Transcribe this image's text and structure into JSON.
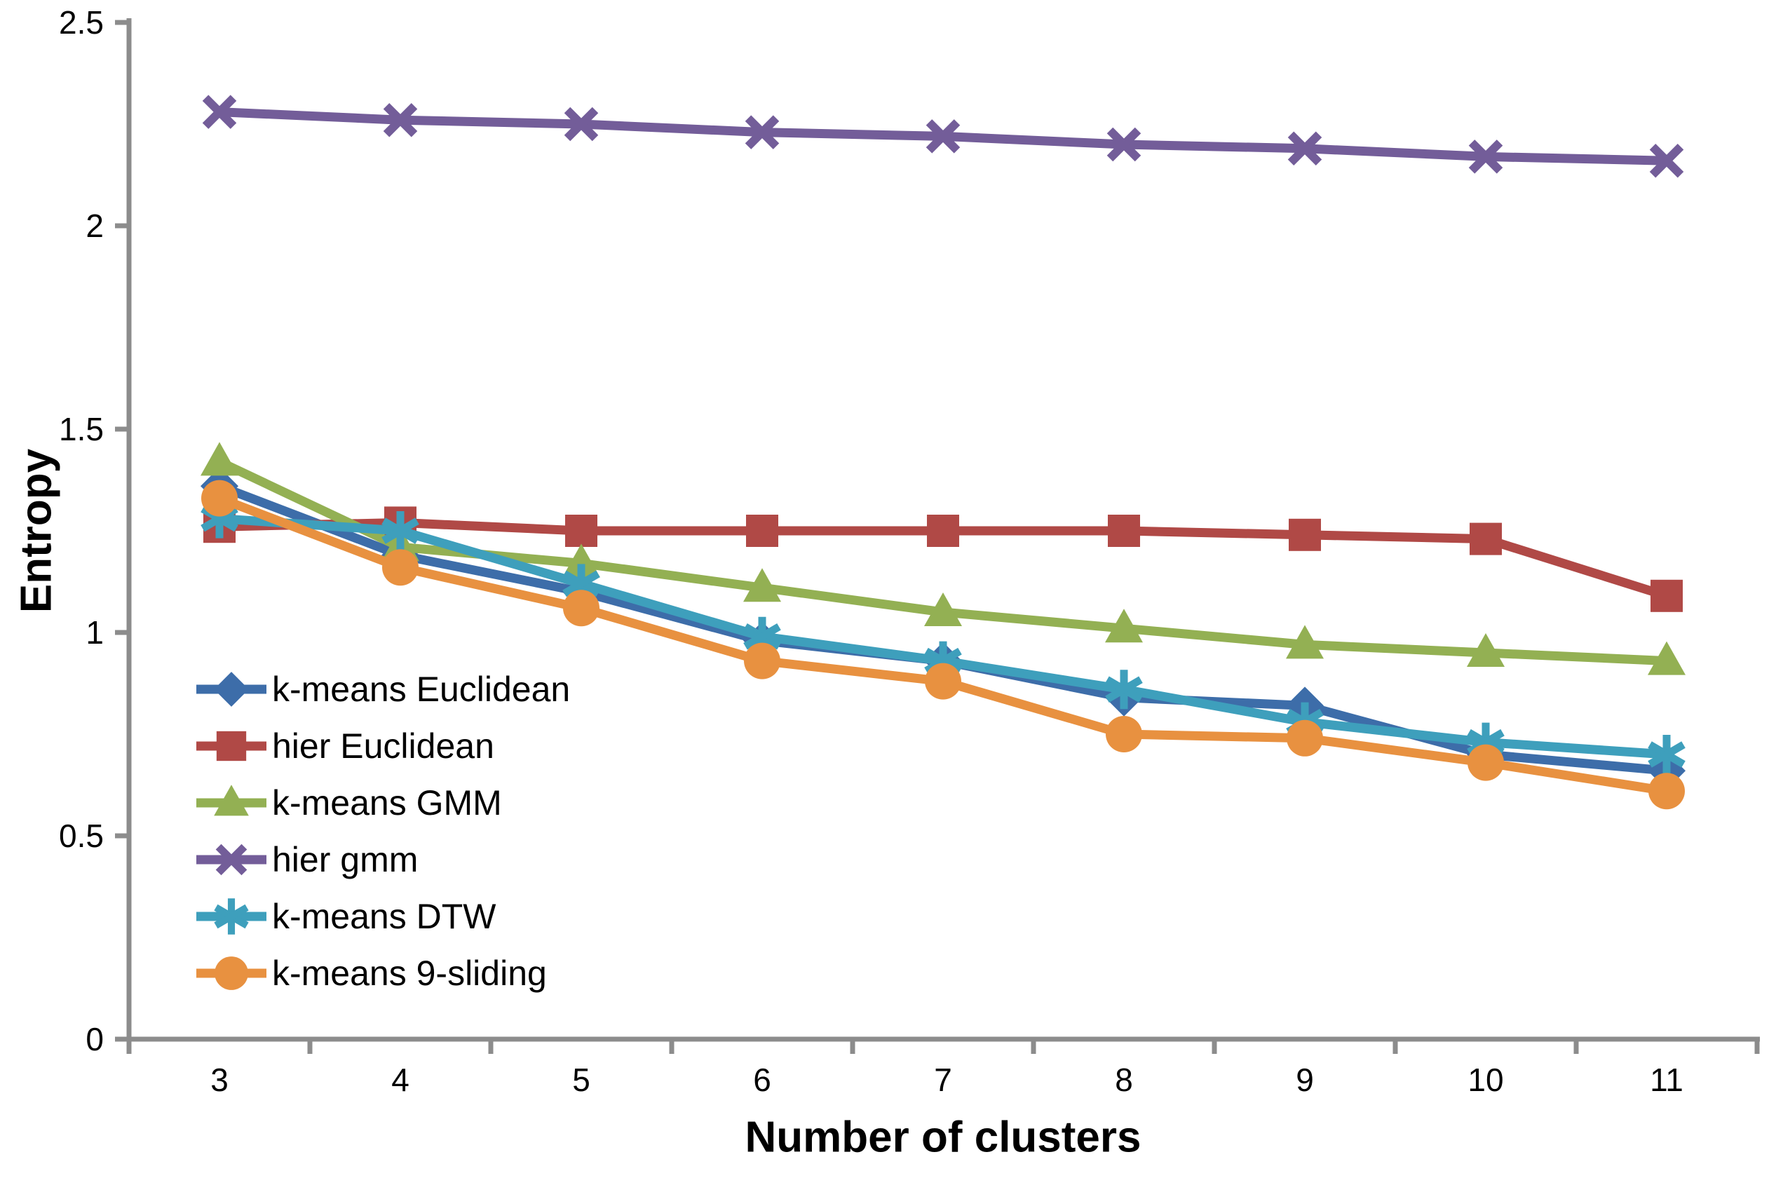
{
  "chart_data": {
    "type": "line",
    "title": "",
    "xlabel": "Number of clusters",
    "ylabel": "Entropy",
    "x": [
      3,
      4,
      5,
      6,
      7,
      8,
      9,
      10,
      11
    ],
    "ylim": [
      0,
      2.5
    ],
    "ytick_values": [
      0,
      0.5,
      1,
      1.5,
      2,
      2.5
    ],
    "ytick_labels": [
      "0",
      "0.5",
      "1",
      "1.5",
      "2",
      "2.5"
    ],
    "grid": false,
    "legend_position": "inside-left",
    "axis_color": "#8C8C8C",
    "text_color": "#000000",
    "series": [
      {
        "name": "k-means Euclidean",
        "marker": "diamond",
        "color": "#3D6DA9",
        "values": [
          1.36,
          1.19,
          1.1,
          0.98,
          0.93,
          0.84,
          0.82,
          0.7,
          0.66
        ]
      },
      {
        "name": "hier Euclidean",
        "marker": "square",
        "color": "#B04946",
        "values": [
          1.26,
          1.27,
          1.25,
          1.25,
          1.25,
          1.25,
          1.24,
          1.23,
          1.09
        ]
      },
      {
        "name": "k-means GMM",
        "marker": "triangle",
        "color": "#93B053",
        "values": [
          1.42,
          1.21,
          1.17,
          1.11,
          1.05,
          1.01,
          0.97,
          0.95,
          0.93
        ]
      },
      {
        "name": "hier gmm",
        "marker": "x",
        "color": "#735D99",
        "values": [
          2.28,
          2.26,
          2.25,
          2.23,
          2.22,
          2.2,
          2.19,
          2.17,
          2.16
        ]
      },
      {
        "name": "k-means DTW",
        "marker": "asterisk",
        "color": "#3E9FBC",
        "values": [
          1.28,
          1.25,
          1.12,
          0.99,
          0.93,
          0.86,
          0.78,
          0.73,
          0.7
        ]
      },
      {
        "name": "k-means 9-sliding",
        "marker": "circle",
        "color": "#E89140",
        "values": [
          1.33,
          1.16,
          1.06,
          0.93,
          0.88,
          0.75,
          0.74,
          0.68,
          0.61
        ]
      }
    ]
  }
}
